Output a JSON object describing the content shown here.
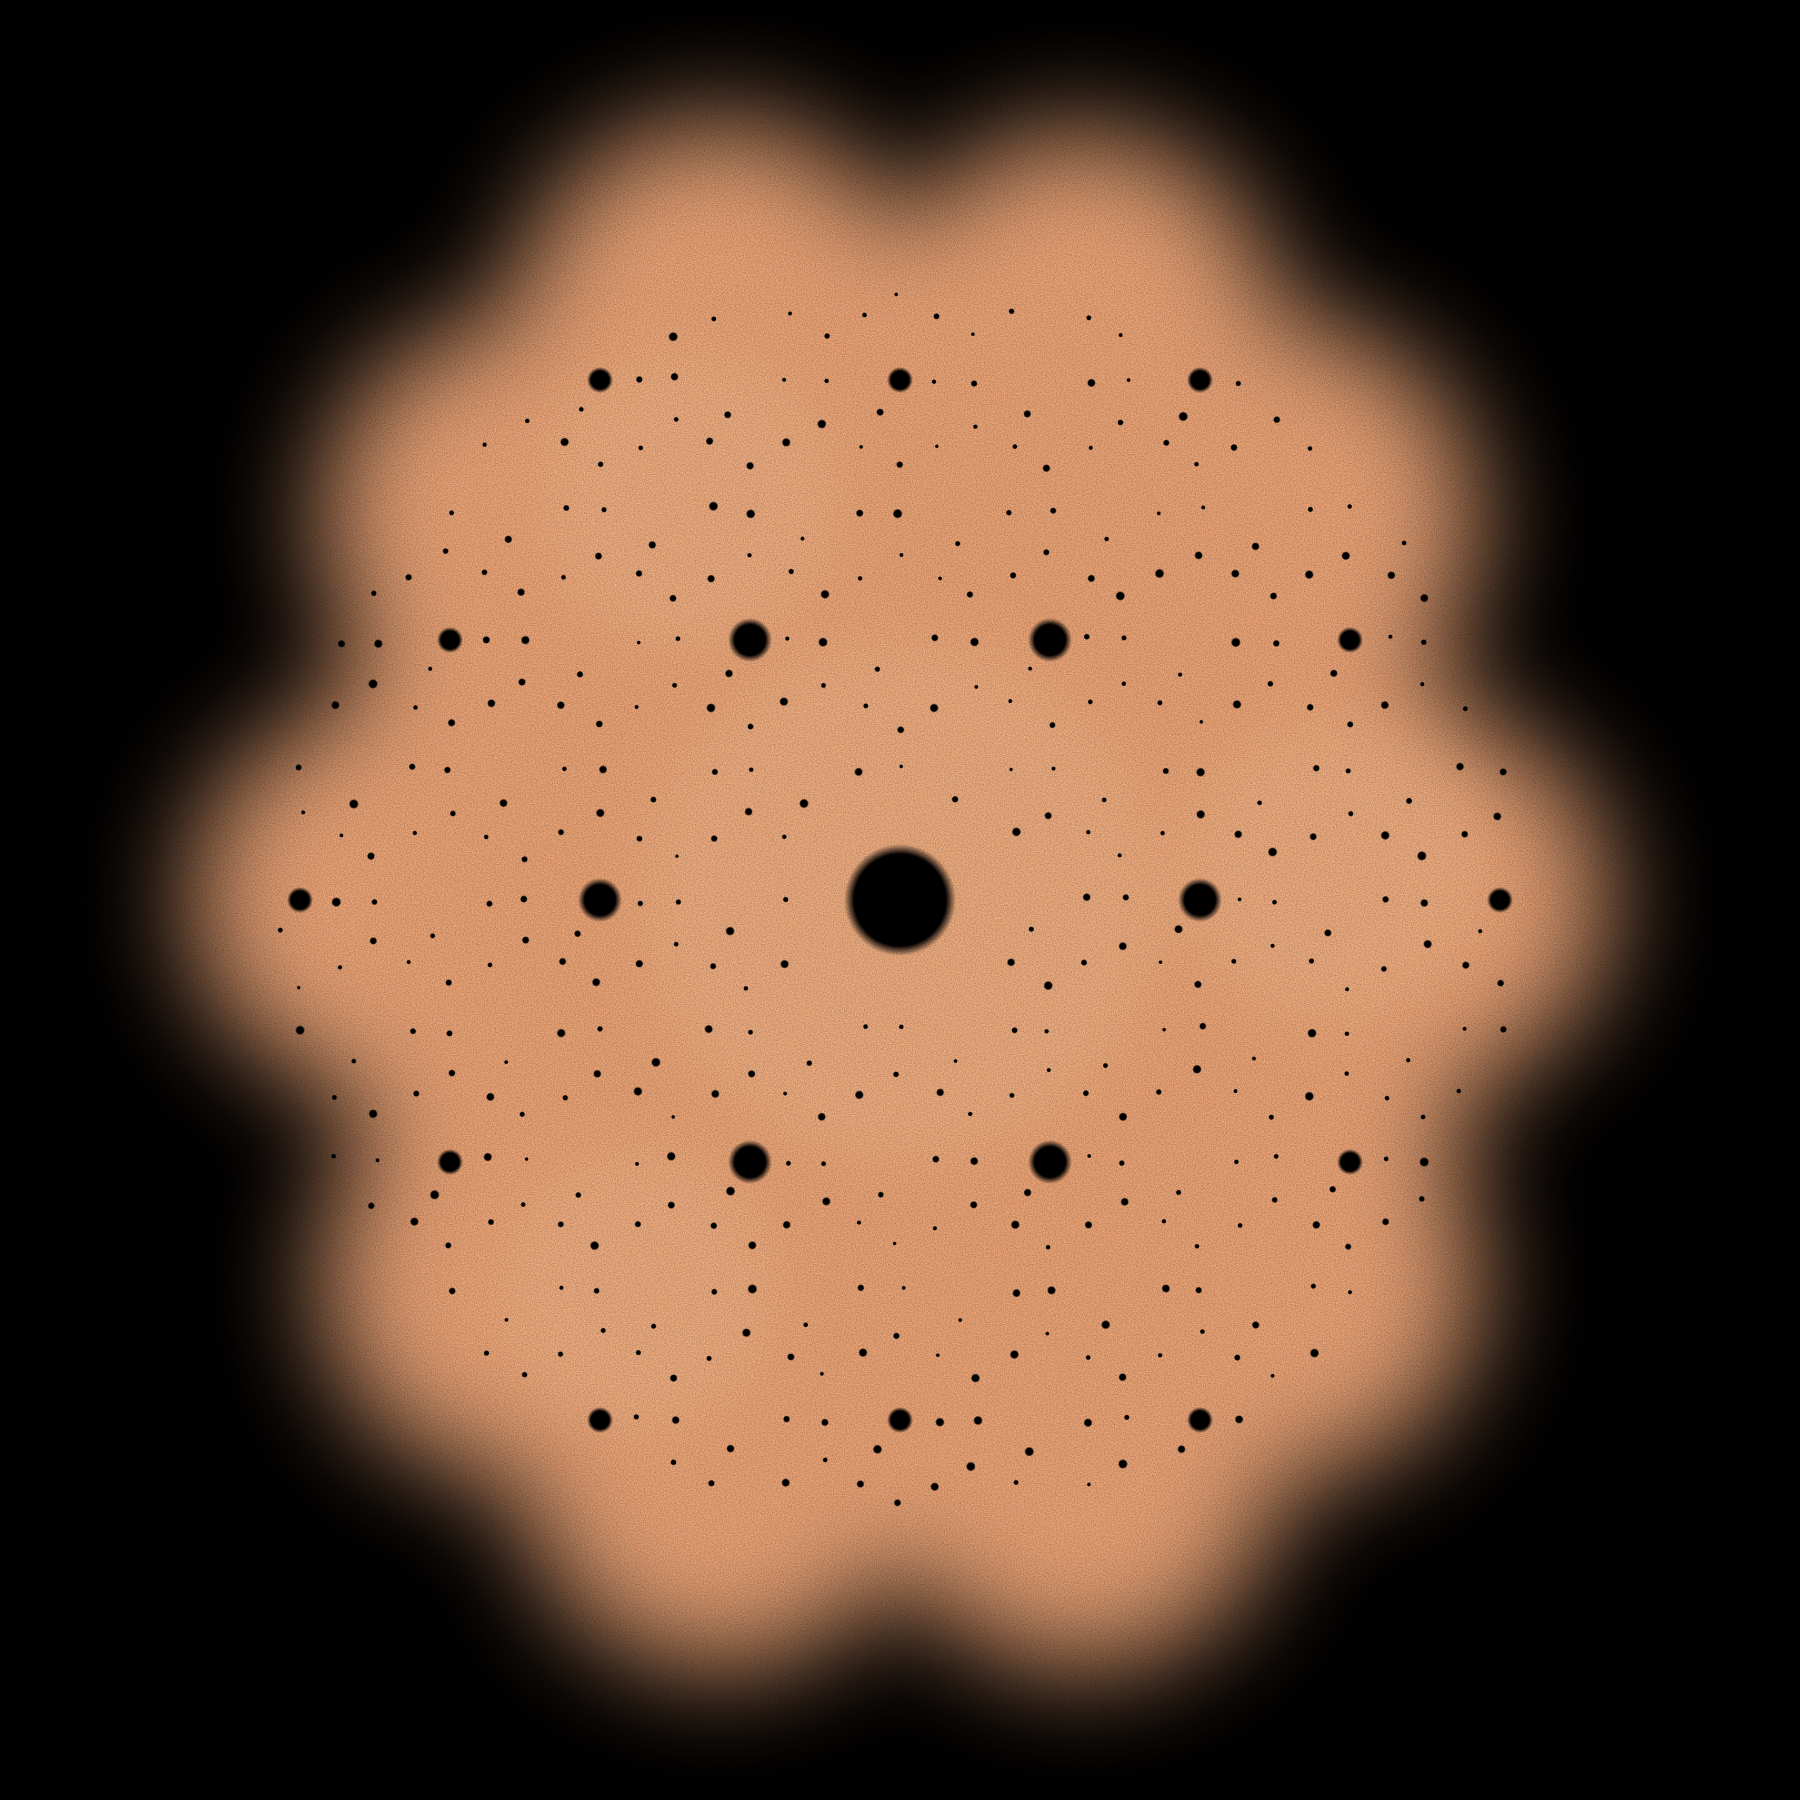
{
  "image": {
    "subject": "root-density-fractal",
    "background_color": "#000000",
    "glow_color": "#f2a97a",
    "glow_highlight_color": "#f7b98c",
    "hole_color": "#000000"
  }
}
